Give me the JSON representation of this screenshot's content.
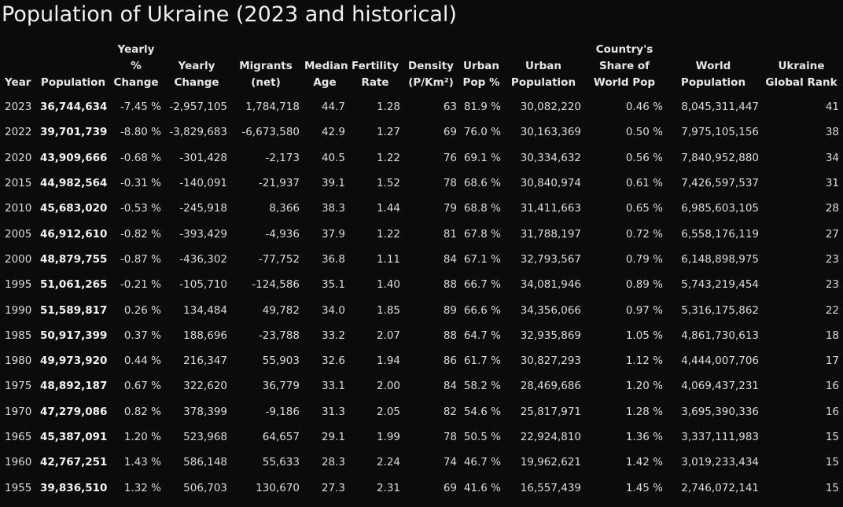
{
  "title": "Population of Ukraine (2023 and historical)",
  "columns": [
    "Year",
    "Population",
    "Yearly % Change",
    "Yearly Change",
    "Migrants (net)",
    "Median Age",
    "Fertility Rate",
    "Density (P/Km²)",
    "Urban Pop %",
    "Urban Population",
    "Country's Share of World Pop",
    "World Population",
    "Ukraine Global Rank"
  ],
  "rows": [
    [
      "2023",
      "36,744,634",
      "-7.45 %",
      "-2,957,105",
      "1,784,718",
      "44.7",
      "1.28",
      "63",
      "81.9 %",
      "30,082,220",
      "0.46 %",
      "8,045,311,447",
      "41"
    ],
    [
      "2022",
      "39,701,739",
      "-8.80 %",
      "-3,829,683",
      "-6,673,580",
      "42.9",
      "1.27",
      "69",
      "76.0 %",
      "30,163,369",
      "0.50 %",
      "7,975,105,156",
      "38"
    ],
    [
      "2020",
      "43,909,666",
      "-0.68 %",
      "-301,428",
      "-2,173",
      "40.5",
      "1.22",
      "76",
      "69.1 %",
      "30,334,632",
      "0.56 %",
      "7,840,952,880",
      "34"
    ],
    [
      "2015",
      "44,982,564",
      "-0.31 %",
      "-140,091",
      "-21,937",
      "39.1",
      "1.52",
      "78",
      "68.6 %",
      "30,840,974",
      "0.61 %",
      "7,426,597,537",
      "31"
    ],
    [
      "2010",
      "45,683,020",
      "-0.53 %",
      "-245,918",
      "8,366",
      "38.3",
      "1.44",
      "79",
      "68.8 %",
      "31,411,663",
      "0.65 %",
      "6,985,603,105",
      "28"
    ],
    [
      "2005",
      "46,912,610",
      "-0.82 %",
      "-393,429",
      "-4,936",
      "37.9",
      "1.22",
      "81",
      "67.8 %",
      "31,788,197",
      "0.72 %",
      "6,558,176,119",
      "27"
    ],
    [
      "2000",
      "48,879,755",
      "-0.87 %",
      "-436,302",
      "-77,752",
      "36.8",
      "1.11",
      "84",
      "67.1 %",
      "32,793,567",
      "0.79 %",
      "6,148,898,975",
      "23"
    ],
    [
      "1995",
      "51,061,265",
      "-0.21 %",
      "-105,710",
      "-124,586",
      "35.1",
      "1.40",
      "88",
      "66.7 %",
      "34,081,946",
      "0.89 %",
      "5,743,219,454",
      "23"
    ],
    [
      "1990",
      "51,589,817",
      "0.26 %",
      "134,484",
      "49,782",
      "34.0",
      "1.85",
      "89",
      "66.6 %",
      "34,356,066",
      "0.97 %",
      "5,316,175,862",
      "22"
    ],
    [
      "1985",
      "50,917,399",
      "0.37 %",
      "188,696",
      "-23,788",
      "33.2",
      "2.07",
      "88",
      "64.7 %",
      "32,935,869",
      "1.05 %",
      "4,861,730,613",
      "18"
    ],
    [
      "1980",
      "49,973,920",
      "0.44 %",
      "216,347",
      "55,903",
      "32.6",
      "1.94",
      "86",
      "61.7 %",
      "30,827,293",
      "1.12 %",
      "4,444,007,706",
      "17"
    ],
    [
      "1975",
      "48,892,187",
      "0.67 %",
      "322,620",
      "36,779",
      "33.1",
      "2.00",
      "84",
      "58.2 %",
      "28,469,686",
      "1.20 %",
      "4,069,437,231",
      "16"
    ],
    [
      "1970",
      "47,279,086",
      "0.82 %",
      "378,399",
      "-9,186",
      "31.3",
      "2.05",
      "82",
      "54.6 %",
      "25,817,971",
      "1.28 %",
      "3,695,390,336",
      "16"
    ],
    [
      "1965",
      "45,387,091",
      "1.20 %",
      "523,968",
      "64,657",
      "29.1",
      "1.99",
      "78",
      "50.5 %",
      "22,924,810",
      "1.36 %",
      "3,337,111,983",
      "15"
    ],
    [
      "1960",
      "42,767,251",
      "1.43 %",
      "586,148",
      "55,633",
      "28.3",
      "2.24",
      "74",
      "46.7 %",
      "19,962,621",
      "1.42 %",
      "3,019,233,434",
      "15"
    ],
    [
      "1955",
      "39,836,510",
      "1.32 %",
      "506,703",
      "130,670",
      "27.3",
      "2.31",
      "69",
      "41.6 %",
      "16,557,439",
      "1.45 %",
      "2,746,072,141",
      "15"
    ]
  ]
}
